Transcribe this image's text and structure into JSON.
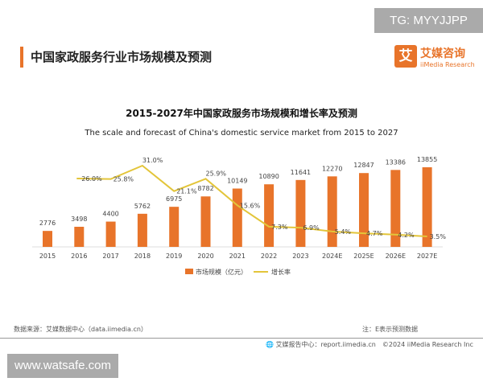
{
  "watermark_top": "TG: MYYJJPP",
  "watermark_bottom": "www.watsafe.com",
  "header": {
    "title": "中国家政服务行业市场规模及预测",
    "logo_cn": "艾媒咨询",
    "logo_en": "iiMedia Research",
    "logo_mark": "艾"
  },
  "footer": {
    "source": "数据来源：艾媒数据中心（data.iimedia.cn）",
    "note": "注：E表示预测数据",
    "credit": "艾媒报告中心：report.iimedia.cn　©2024  iiMedia Research  Inc"
  },
  "colors": {
    "bar": "#e8742a",
    "line": "#e3c53a",
    "accent": "#e8742a"
  },
  "chart_data": {
    "type": "bar+line",
    "title": "2015-2027年中国家政服务市场规模和增长率及预测",
    "subtitle": "The scale and forecast of China's domestic service market from 2015 to 2027",
    "categories": [
      "2015",
      "2016",
      "2017",
      "2018",
      "2019",
      "2020",
      "2021",
      "2022",
      "2023",
      "2024E",
      "2025E",
      "2026E",
      "2027E"
    ],
    "series": [
      {
        "name": "市场规模（亿元）",
        "type": "bar",
        "values": [
          2776,
          3498,
          4400,
          5762,
          6975,
          8782,
          10149,
          10890,
          11641,
          12270,
          12847,
          13386,
          13855
        ],
        "labels": [
          "2776",
          "3498",
          "4400",
          "5762",
          "6975",
          "8782",
          "10149",
          "10890",
          "11641",
          "12270",
          "12847",
          "13386",
          "13855"
        ]
      },
      {
        "name": "增长率",
        "type": "line",
        "values": [
          null,
          26.0,
          25.8,
          31.0,
          21.1,
          25.9,
          15.6,
          7.3,
          6.9,
          5.4,
          4.7,
          4.2,
          3.5
        ],
        "labels": [
          "",
          "26.0%",
          "25.8%",
          "31.0%",
          "21.1%",
          "25.9%",
          "15.6%",
          "7.3%",
          "6.9%",
          "5.4%",
          "4.7%",
          "4.2%",
          "3.5%"
        ]
      }
    ],
    "legend_position": "bottom",
    "grid": false
  }
}
